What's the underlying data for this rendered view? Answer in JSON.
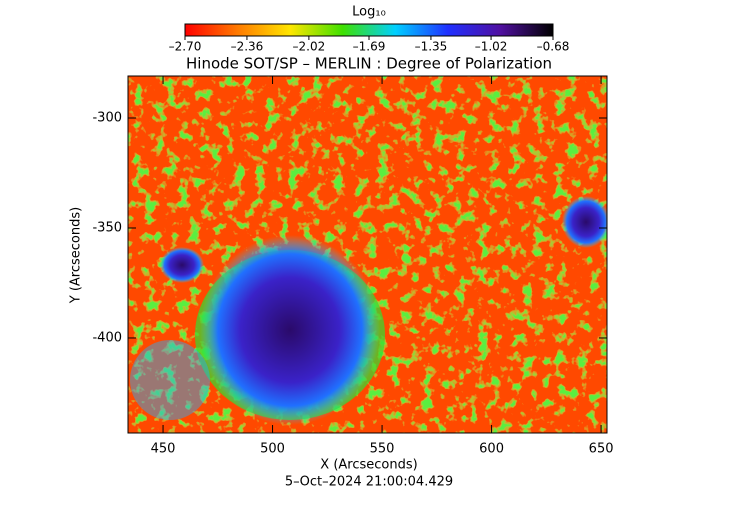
{
  "chart_data": {
    "type": "image",
    "title": "Hinode SOT/SP – MERLIN : Degree of Polarization",
    "x_label": "X (Arcseconds)",
    "y_label": "Y (Arcseconds)",
    "footer": "5–Oct–2024 21:00:04.429",
    "xlim": [
      434,
      652.7
    ],
    "xticks": [
      450,
      500,
      550,
      600,
      650
    ],
    "ylim": [
      -443.2,
      -280.9
    ],
    "yticks": [
      -400,
      -350,
      -300
    ],
    "colorbar": {
      "label": "Log₁₀",
      "clim": [
        -2.7,
        -0.68
      ],
      "ticks": [
        {
          "value": -2.7,
          "label": "–2.70"
        },
        {
          "value": -2.36,
          "label": "–2.36"
        },
        {
          "value": -2.02,
          "label": "–2.02"
        },
        {
          "value": -1.69,
          "label": "–1.69"
        },
        {
          "value": -1.35,
          "label": "–1.35"
        },
        {
          "value": -1.02,
          "label": "–1.02"
        },
        {
          "value": -0.68,
          "label": "–0.68"
        }
      ],
      "colormap": [
        "#ff0000",
        "#ff7a00",
        "#ffe600",
        "#3ee000",
        "#00d0ff",
        "#2030ff",
        "#5010a0",
        "#000000"
      ]
    }
  }
}
